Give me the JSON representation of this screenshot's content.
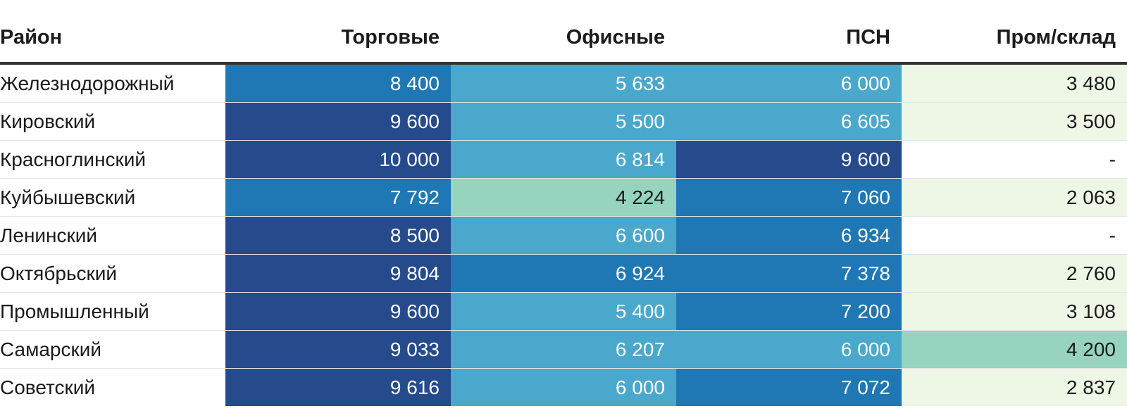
{
  "chart_data": {
    "type": "table",
    "columns": [
      "Район",
      "Торговые",
      "Офисные",
      "ПСН",
      "Пром/склад"
    ],
    "rows": [
      {
        "district": "Железнодорожный",
        "values": [
          "8 400",
          "5 633",
          "6 000",
          "3 480"
        ],
        "colors": [
          "#1f78b4",
          "#4aa8cc",
          "#4aa8cc",
          "#eef7e6"
        ]
      },
      {
        "district": "Кировский",
        "values": [
          "9 600",
          "5 500",
          "6 605",
          "3 500"
        ],
        "colors": [
          "#254b8c",
          "#4aa8cc",
          "#4aa8cc",
          "#eef7e6"
        ]
      },
      {
        "district": "Красноглинский",
        "values": [
          "10 000",
          "6 814",
          "9 600",
          "-"
        ],
        "colors": [
          "#254b8c",
          "#4aa8cc",
          "#254b8c",
          "#ffffff"
        ]
      },
      {
        "district": "Куйбышевский",
        "values": [
          "7 792",
          "4 224",
          "7 060",
          "2 063"
        ],
        "colors": [
          "#1f78b4",
          "#96d4c0",
          "#1f78b4",
          "#eef7e6"
        ]
      },
      {
        "district": "Ленинский",
        "values": [
          "8 500",
          "6 600",
          "6 934",
          "-"
        ],
        "colors": [
          "#254b8c",
          "#4aa8cc",
          "#1f78b4",
          "#ffffff"
        ]
      },
      {
        "district": "Октябрьский",
        "values": [
          "9 804",
          "6 924",
          "7 378",
          "2 760"
        ],
        "colors": [
          "#254b8c",
          "#1f78b4",
          "#1f78b4",
          "#eef7e6"
        ]
      },
      {
        "district": "Промышленный",
        "values": [
          "9 600",
          "5 400",
          "7 200",
          "3 108"
        ],
        "colors": [
          "#254b8c",
          "#4aa8cc",
          "#1f78b4",
          "#eef7e6"
        ]
      },
      {
        "district": "Самарский",
        "values": [
          "9 033",
          "6 207",
          "6 000",
          "4 200"
        ],
        "colors": [
          "#254b8c",
          "#4aa8cc",
          "#4aa8cc",
          "#96d4c0"
        ]
      },
      {
        "district": "Советский",
        "values": [
          "9 616",
          "6 000",
          "7 072",
          "2 837"
        ],
        "colors": [
          "#254b8c",
          "#4aa8cc",
          "#1f78b4",
          "#eef7e6"
        ]
      }
    ]
  }
}
